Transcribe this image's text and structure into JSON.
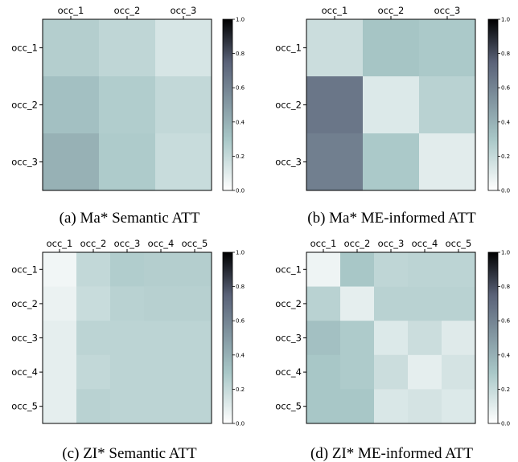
{
  "colormap": {
    "stops": [
      "#ffffff",
      "#a8c7c7",
      "#5a6278",
      "#000000"
    ],
    "positions": [
      0,
      0.3,
      0.75,
      1
    ]
  },
  "chart_data": [
    {
      "type": "heatmap",
      "caption": "(a) Ma* Semantic ATT",
      "x_labels": [
        "occ_1",
        "occ_2",
        "occ_3"
      ],
      "y_labels": [
        "occ_1",
        "occ_2",
        "occ_3"
      ],
      "values": [
        [
          0.26,
          0.22,
          0.14
        ],
        [
          0.33,
          0.27,
          0.21
        ],
        [
          0.4,
          0.28,
          0.19
        ]
      ],
      "colorbar": {
        "range": [
          0.0,
          1.0
        ],
        "ticks": [
          "0.0",
          "0.2",
          "0.4",
          "0.6",
          "0.8",
          "1.0"
        ]
      }
    },
    {
      "type": "heatmap",
      "caption": "(b) Ma* ME-informed ATT",
      "x_labels": [
        "occ_1",
        "occ_2",
        "occ_3"
      ],
      "y_labels": [
        "occ_1",
        "occ_2",
        "occ_3"
      ],
      "values": [
        [
          0.18,
          0.31,
          0.29
        ],
        [
          0.66,
          0.12,
          0.24
        ],
        [
          0.62,
          0.29,
          0.1
        ]
      ],
      "colorbar": {
        "range": [
          0.0,
          1.0
        ],
        "ticks": [
          "0.0",
          "0.2",
          "0.4",
          "0.6",
          "0.8",
          "1.0"
        ]
      }
    },
    {
      "type": "heatmap",
      "caption": "(c) ZI* Semantic ATT",
      "x_labels": [
        "occ_1",
        "occ_2",
        "occ_3",
        "occ_4",
        "occ_5"
      ],
      "y_labels": [
        "occ_1",
        "occ_2",
        "occ_3",
        "occ_4",
        "occ_5"
      ],
      "values": [
        [
          0.05,
          0.21,
          0.27,
          0.26,
          0.26
        ],
        [
          0.07,
          0.19,
          0.24,
          0.25,
          0.25
        ],
        [
          0.09,
          0.23,
          0.23,
          0.23,
          0.23
        ],
        [
          0.09,
          0.21,
          0.23,
          0.23,
          0.23
        ],
        [
          0.09,
          0.24,
          0.23,
          0.23,
          0.23
        ]
      ],
      "colorbar": {
        "range": [
          0.0,
          1.0
        ],
        "ticks": [
          "0.0",
          "0.2",
          "0.4",
          "0.6",
          "0.8",
          "1.0"
        ]
      }
    },
    {
      "type": "heatmap",
      "caption": "(d) ZI* ME-informed ATT",
      "x_labels": [
        "occ_1",
        "occ_2",
        "occ_3",
        "occ_4",
        "occ_5"
      ],
      "y_labels": [
        "occ_1",
        "occ_2",
        "occ_3",
        "occ_4",
        "occ_5"
      ],
      "values": [
        [
          0.06,
          0.3,
          0.22,
          0.23,
          0.23
        ],
        [
          0.24,
          0.09,
          0.24,
          0.24,
          0.24
        ],
        [
          0.33,
          0.28,
          0.12,
          0.18,
          0.11
        ],
        [
          0.3,
          0.28,
          0.18,
          0.09,
          0.15
        ],
        [
          0.3,
          0.3,
          0.13,
          0.15,
          0.12
        ]
      ],
      "colorbar": {
        "range": [
          0.0,
          1.0
        ],
        "ticks": [
          "0.0",
          "0.2",
          "0.4",
          "0.6",
          "0.8",
          "1.0"
        ]
      }
    }
  ]
}
